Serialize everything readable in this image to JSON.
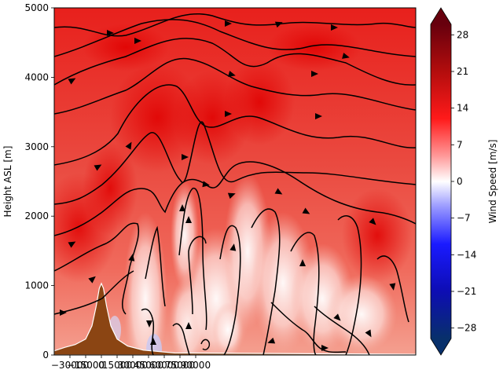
{
  "chart_data": {
    "type": "heatmap",
    "title": "",
    "xlabel": "",
    "ylabel": "Height ASL [m]",
    "ylim": [
      0,
      5000
    ],
    "yticks": [
      {
        "value": 0,
        "label": "0"
      },
      {
        "value": 1000,
        "label": "1000"
      },
      {
        "value": 2000,
        "label": "2000"
      },
      {
        "value": 3000,
        "label": "3000"
      },
      {
        "value": 4000,
        "label": "4000"
      },
      {
        "value": 5000,
        "label": "5000"
      }
    ],
    "xticks": [
      {
        "value": -30000,
        "label": "−30000"
      },
      {
        "value": -15000,
        "label": "−15000"
      },
      {
        "value": 0,
        "label": "0"
      },
      {
        "value": 15000,
        "label": "15000"
      },
      {
        "value": 30000,
        "label": "30000"
      },
      {
        "value": 45000,
        "label": "45000"
      },
      {
        "value": 60000,
        "label": "60000"
      },
      {
        "value": 75000,
        "label": "75000"
      },
      {
        "value": 90000,
        "label": "90000"
      }
    ],
    "xlim": [
      -45000,
      300000
    ],
    "colorbar": {
      "label": "Wind Speed [m/s]",
      "range": [
        -30,
        30
      ],
      "ticks": [
        {
          "value": 28,
          "label": "28"
        },
        {
          "value": 21,
          "label": "21"
        },
        {
          "value": 14,
          "label": "14"
        },
        {
          "value": 7,
          "label": "7"
        },
        {
          "value": 0,
          "label": "0"
        },
        {
          "value": -7,
          "label": "−7"
        },
        {
          "value": -14,
          "label": "−14"
        },
        {
          "value": -21,
          "label": "−21"
        },
        {
          "value": -28,
          "label": "−28"
        }
      ],
      "colors": {
        "min": "#08306b",
        "neg": "#2b2bff",
        "zero": "#ffffff",
        "pos": "#ff1a1a",
        "max": "#67000d"
      }
    },
    "terrain": {
      "color": "#8b4513",
      "peak_height": 1030,
      "peak_x": 0,
      "points": [
        {
          "x": -45000,
          "y": 60
        },
        {
          "x": -35000,
          "y": 110
        },
        {
          "x": -25000,
          "y": 150
        },
        {
          "x": -15000,
          "y": 230
        },
        {
          "x": -9000,
          "y": 420
        },
        {
          "x": -5000,
          "y": 700
        },
        {
          "x": -2000,
          "y": 960
        },
        {
          "x": 0,
          "y": 1030
        },
        {
          "x": 2000,
          "y": 960
        },
        {
          "x": 5000,
          "y": 700
        },
        {
          "x": 9000,
          "y": 420
        },
        {
          "x": 15000,
          "y": 230
        },
        {
          "x": 25000,
          "y": 130
        },
        {
          "x": 40000,
          "y": 70
        },
        {
          "x": 70000,
          "y": 30
        },
        {
          "x": 300000,
          "y": 10
        }
      ]
    },
    "streamline_color": "#000000"
  }
}
